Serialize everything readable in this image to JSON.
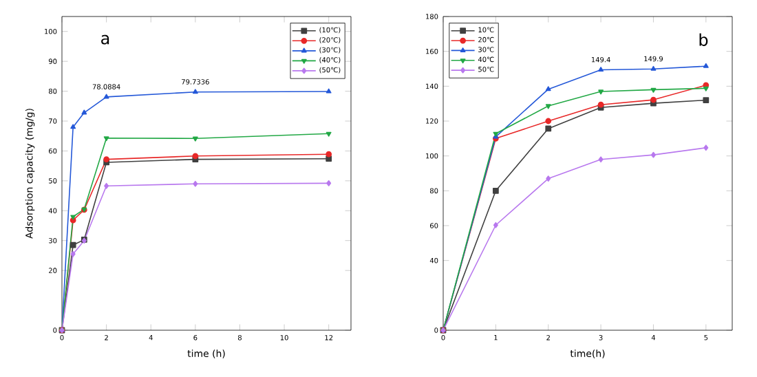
{
  "chart_data": [
    {
      "type": "line",
      "title": "a",
      "xlabel": "time (h)",
      "ylabel": "Adsorption capacity (mg/g)",
      "x": [
        0,
        0.5,
        1,
        2,
        6,
        12
      ],
      "xlim": [
        0,
        13
      ],
      "xticks": [
        0,
        2,
        4,
        6,
        8,
        10,
        12
      ],
      "ylim": [
        0,
        105
      ],
      "yticks": [
        0,
        20,
        30,
        40,
        50,
        60,
        70,
        80,
        90,
        100
      ],
      "legend": "top right",
      "grid": false,
      "series": [
        {
          "name": "(10℃)",
          "color": "#404040",
          "marker": "square",
          "values": [
            0,
            28.5,
            30.3,
            56.2,
            57.2,
            57.4
          ]
        },
        {
          "name": "(20℃)",
          "color": "#e82828",
          "marker": "circle",
          "values": [
            0,
            36.8,
            40.3,
            57.2,
            58.3,
            58.9
          ]
        },
        {
          "name": "(30℃)",
          "color": "#2458d8",
          "marker": "triangle",
          "values": [
            0,
            68,
            72.8,
            78.0884,
            79.7336,
            79.9
          ]
        },
        {
          "name": "(40℃)",
          "color": "#22a845",
          "marker": "triangle down",
          "values": [
            0,
            38,
            40.5,
            64.3,
            64.2,
            65.8
          ]
        },
        {
          "name": "(50℃)",
          "color": "#b878ee",
          "marker": "diamond",
          "values": [
            0,
            25.5,
            30,
            48.3,
            49,
            49.2
          ]
        }
      ],
      "annotations": [
        {
          "text": "78.0884",
          "x": 2,
          "y": 78.0884
        },
        {
          "text": "79.7336",
          "x": 6,
          "y": 79.7336
        }
      ]
    },
    {
      "type": "line",
      "title": "b",
      "xlabel": "time(h)",
      "x": [
        0,
        1,
        2,
        3,
        4,
        5
      ],
      "xlim": [
        0,
        5.5
      ],
      "xticks": [
        0,
        1,
        2,
        3,
        4,
        5
      ],
      "ylim": [
        0,
        180
      ],
      "yticks": [
        0,
        40,
        60,
        80,
        100,
        120,
        140,
        160,
        180
      ],
      "legend": "top left",
      "grid": false,
      "series": [
        {
          "name": "10℃",
          "color": "#404040",
          "marker": "square",
          "values": [
            0,
            80,
            115.7,
            127.8,
            130.2,
            132
          ]
        },
        {
          "name": "20℃",
          "color": "#e82828",
          "marker": "circle",
          "values": [
            0,
            110,
            120,
            129.4,
            132.2,
            140.6
          ]
        },
        {
          "name": "30℃",
          "color": "#2458d8",
          "marker": "triangle",
          "values": [
            0,
            111,
            138.3,
            149.4,
            149.9,
            151.5
          ]
        },
        {
          "name": "40℃",
          "color": "#22a845",
          "marker": "triangle down",
          "values": [
            0,
            112.8,
            128.7,
            137,
            138,
            138.8
          ]
        },
        {
          "name": "50℃",
          "color": "#b878ee",
          "marker": "diamond",
          "values": [
            0,
            60.3,
            87,
            98,
            100.6,
            104.7
          ]
        }
      ],
      "annotations": [
        {
          "text": "149.4",
          "x": 3,
          "y": 149.4
        },
        {
          "text": "149.9",
          "x": 4,
          "y": 149.9
        }
      ]
    }
  ]
}
